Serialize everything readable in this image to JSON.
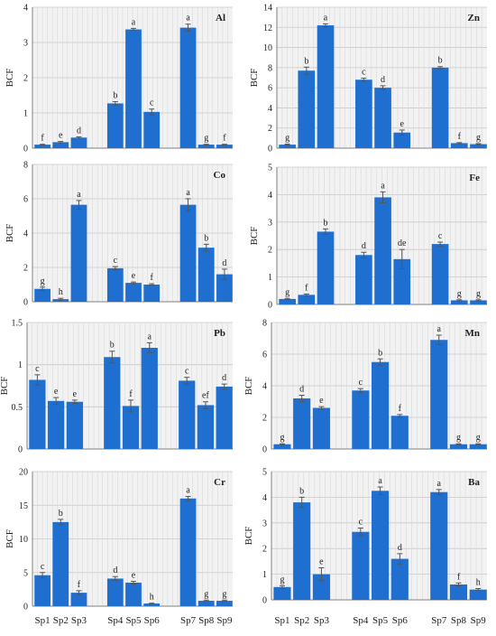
{
  "figure": {
    "x_categories": [
      "Sp1",
      "Sp2",
      "Sp3",
      "Sp4",
      "Sp5",
      "Sp6",
      "Sp7",
      "Sp8",
      "Sp9"
    ],
    "bar_color": "#1f6fd1",
    "grid_color": "#d9d9d9",
    "background_color": "#f2f2f2"
  },
  "chart_data": [
    {
      "type": "bar",
      "title": "Al",
      "ylabel": "BCF",
      "xlabel": "",
      "categories": [
        "Sp1",
        "Sp2",
        "Sp3",
        "Sp4",
        "Sp5",
        "Sp6",
        "Sp7",
        "Sp8",
        "Sp9"
      ],
      "values": [
        0.1,
        0.17,
        0.3,
        1.27,
        3.37,
        1.03,
        3.42,
        0.1,
        0.1
      ],
      "errors": [
        0.01,
        0.02,
        0.02,
        0.05,
        0.03,
        0.08,
        0.1,
        0.01,
        0.01
      ],
      "letters": [
        "f",
        "e",
        "d",
        "b",
        "a",
        "c",
        "a",
        "g",
        "f"
      ],
      "ylim": [
        0,
        4
      ],
      "yticks": [
        0,
        1,
        2,
        3,
        4
      ],
      "grid": true
    },
    {
      "type": "bar",
      "title": "Zn",
      "ylabel": "BCF",
      "xlabel": "",
      "categories": [
        "Sp1",
        "Sp2",
        "Sp3",
        "Sp4",
        "Sp5",
        "Sp6",
        "Sp7",
        "Sp8",
        "Sp9"
      ],
      "values": [
        0.35,
        7.7,
        12.2,
        6.8,
        6.0,
        1.55,
        8.0,
        0.5,
        0.4
      ],
      "errors": [
        0.05,
        0.35,
        0.15,
        0.15,
        0.2,
        0.25,
        0.1,
        0.05,
        0.05
      ],
      "letters": [
        "g",
        "b",
        "a",
        "c",
        "d",
        "e",
        "b",
        "f",
        "g"
      ],
      "ylim": [
        0,
        14
      ],
      "yticks": [
        0,
        2,
        4,
        6,
        8,
        10,
        12,
        14
      ],
      "grid": true
    },
    {
      "type": "bar",
      "title": "Co",
      "ylabel": "BCF",
      "xlabel": "",
      "categories": [
        "Sp1",
        "Sp2",
        "Sp3",
        "Sp4",
        "Sp5",
        "Sp6",
        "Sp7",
        "Sp8",
        "Sp9"
      ],
      "values": [
        0.75,
        0.15,
        5.65,
        1.95,
        1.1,
        1.0,
        5.65,
        3.15,
        1.6
      ],
      "errors": [
        0.1,
        0.05,
        0.25,
        0.1,
        0.05,
        0.05,
        0.35,
        0.2,
        0.3
      ],
      "letters": [
        "g",
        "h",
        "a",
        "c",
        "e",
        "f",
        "a",
        "b",
        "d"
      ],
      "ylim": [
        0,
        8
      ],
      "yticks": [
        0,
        2,
        4,
        6,
        8
      ],
      "grid": true
    },
    {
      "type": "bar",
      "title": "Fe",
      "ylabel": "BCF",
      "xlabel": "",
      "categories": [
        "Sp1",
        "Sp2",
        "Sp3",
        "Sp4",
        "Sp5",
        "Sp6",
        "Sp7",
        "Sp8",
        "Sp9"
      ],
      "values": [
        0.2,
        0.35,
        2.65,
        1.8,
        3.9,
        1.65,
        2.2,
        0.15,
        0.15
      ],
      "errors": [
        0.02,
        0.03,
        0.1,
        0.1,
        0.2,
        0.35,
        0.07,
        0.02,
        0.02
      ],
      "letters": [
        "g",
        "f",
        "b",
        "d",
        "a",
        "de",
        "c",
        "g",
        "g"
      ],
      "ylim": [
        0,
        5
      ],
      "yticks": [
        0,
        1,
        2,
        3,
        4,
        5
      ],
      "grid": true
    },
    {
      "type": "bar",
      "title": "Pb",
      "ylabel": "BCF",
      "xlabel": "",
      "categories": [
        "Sp1",
        "Sp2",
        "Sp3",
        "Sp4",
        "Sp5",
        "Sp6",
        "Sp7",
        "Sp8",
        "Sp9"
      ],
      "values": [
        0.82,
        0.57,
        0.56,
        1.09,
        0.51,
        1.2,
        0.81,
        0.52,
        0.74
      ],
      "errors": [
        0.06,
        0.04,
        0.02,
        0.07,
        0.07,
        0.06,
        0.04,
        0.04,
        0.03
      ],
      "letters": [
        "c",
        "e",
        "e",
        "b",
        "f",
        "a",
        "c",
        "ef",
        "d"
      ],
      "ylim": [
        0,
        1.5
      ],
      "yticks": [
        0,
        0.5,
        1,
        1.5
      ],
      "grid": true
    },
    {
      "type": "bar",
      "title": "Mn",
      "ylabel": "BCF",
      "xlabel": "",
      "categories": [
        "Sp1",
        "Sp2",
        "Sp3",
        "Sp4",
        "Sp5",
        "Sp6",
        "Sp7",
        "Sp8",
        "Sp9"
      ],
      "values": [
        0.3,
        3.2,
        2.6,
        3.7,
        5.5,
        2.1,
        6.9,
        0.3,
        0.3
      ],
      "errors": [
        0.03,
        0.2,
        0.08,
        0.12,
        0.2,
        0.08,
        0.3,
        0.03,
        0.03
      ],
      "letters": [
        "g",
        "d",
        "e",
        "c",
        "b",
        "f",
        "a",
        "g",
        "g"
      ],
      "ylim": [
        0,
        8
      ],
      "yticks": [
        0,
        2,
        4,
        6,
        8
      ],
      "grid": true
    },
    {
      "type": "bar",
      "title": "Cr",
      "ylabel": "BCF",
      "xlabel": "",
      "categories": [
        "Sp1",
        "Sp2",
        "Sp3",
        "Sp4",
        "Sp5",
        "Sp6",
        "Sp7",
        "Sp8",
        "Sp9"
      ],
      "values": [
        4.6,
        12.5,
        2.0,
        4.1,
        3.5,
        0.4,
        16.0,
        0.8,
        0.8
      ],
      "errors": [
        0.4,
        0.4,
        0.3,
        0.3,
        0.2,
        0.05,
        0.3,
        0.1,
        0.1
      ],
      "letters": [
        "c",
        "b",
        "f",
        "d",
        "e",
        "h",
        "a",
        "g",
        "g"
      ],
      "ylim": [
        0,
        20
      ],
      "yticks": [
        0,
        5,
        10,
        15,
        20
      ],
      "grid": true
    },
    {
      "type": "bar",
      "title": "Ba",
      "ylabel": "BCF",
      "xlabel": "",
      "categories": [
        "Sp1",
        "Sp2",
        "Sp3",
        "Sp4",
        "Sp5",
        "Sp6",
        "Sp7",
        "Sp8",
        "Sp9"
      ],
      "values": [
        0.5,
        3.8,
        1.0,
        2.65,
        4.25,
        1.6,
        4.2,
        0.6,
        0.4
      ],
      "errors": [
        0.05,
        0.2,
        0.25,
        0.15,
        0.15,
        0.2,
        0.1,
        0.06,
        0.04
      ],
      "letters": [
        "g",
        "b",
        "e",
        "c",
        "a",
        "d",
        "a",
        "f",
        "h"
      ],
      "ylim": [
        0,
        5
      ],
      "yticks": [
        0,
        1,
        2,
        3,
        4,
        5
      ],
      "grid": true
    }
  ]
}
